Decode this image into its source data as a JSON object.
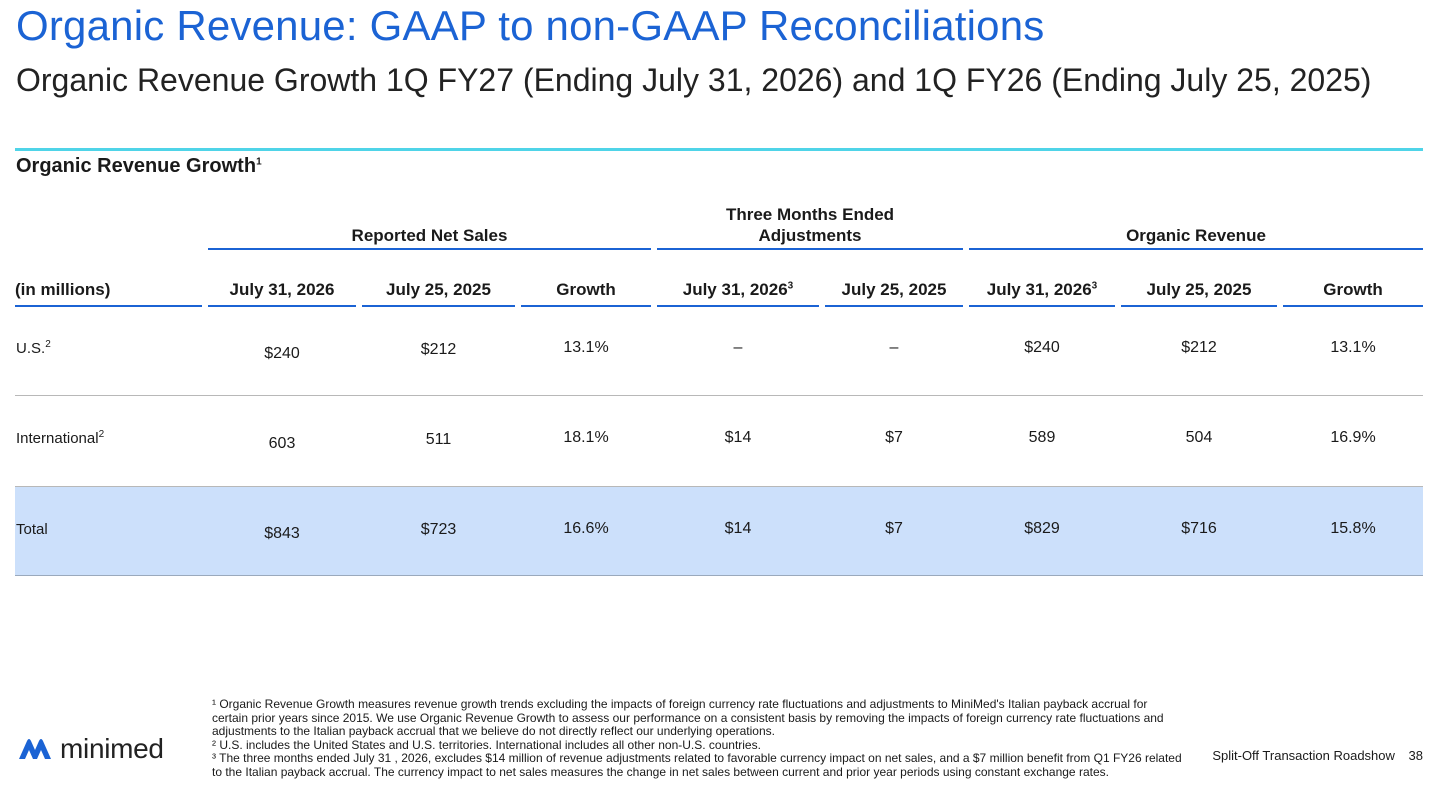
{
  "header": {
    "title": "Organic Revenue: GAAP to non-GAAP Reconciliations",
    "subtitle": "Organic Revenue Growth 1Q FY27 (Ending July 31, 2026) and 1Q FY26 (Ending July 25, 2025)"
  },
  "section": {
    "title": "Organic Revenue Growth",
    "title_sup": "1"
  },
  "groups": {
    "reported": "Reported Net Sales",
    "adjustments_line1": "Three Months Ended",
    "adjustments_line2": "Adjustments",
    "organic": "Organic Revenue"
  },
  "columns": {
    "units": "(in millions)",
    "rep_2026": "July 31, 2026",
    "rep_2025": "July 25, 2025",
    "rep_growth": "Growth",
    "adj_2026": "July 31, 2026",
    "adj_2026_sup": "3",
    "adj_2025": "July 25, 2025",
    "org_2026": "July 31, 2026",
    "org_2026_sup": "3",
    "org_2025": "July 25, 2025",
    "org_growth": "Growth"
  },
  "rows": [
    {
      "label": "U.S.",
      "sup": "2",
      "values": [
        "$240",
        "$212",
        "13.1%",
        "–",
        "–",
        "$240",
        "$212",
        "13.1%"
      ]
    },
    {
      "label": "International",
      "sup": "2",
      "values": [
        "603",
        "511",
        "18.1%",
        "$14",
        "$7",
        "589",
        "504",
        "16.9%"
      ]
    },
    {
      "label": "Total",
      "sup": "",
      "values": [
        "$843",
        "$723",
        "16.6%",
        "$14",
        "$7",
        "$829",
        "$716",
        "15.8%"
      ]
    }
  ],
  "footnotes": {
    "note1": "¹ Organic Revenue Growth measures revenue growth trends excluding the impacts of foreign currency rate fluctuations and adjustments to MiniMed's Italian payback accrual for certain prior years since 2015. We use Organic Revenue Growth to assess our performance on a consistent basis by removing the impacts of foreign currency rate fluctuations and adjustments to the Italian payback accrual that we believe do not directly reflect our underlying operations.",
    "note2": "² U.S. includes the United States and U.S. territories. International includes all other non-U.S. countries.",
    "note3": "³ The three months ended July 31 , 2026, excludes $14 million of revenue adjustments related to favorable currency impact on net sales, and a $7 million benefit from Q1 FY26 related to the Italian payback accrual. The currency impact to net sales measures the change in net sales between current and prior year periods using constant exchange rates."
  },
  "logo": {
    "text": "minimed",
    "icon": "minimed-logo-icon",
    "color": "#1b63d4"
  },
  "footer": {
    "label": "Split-Off Transaction Roadshow",
    "page": "38"
  },
  "colors": {
    "accent": "#1b63d4",
    "rule": "#4fd4e8",
    "total_band": "#cce0fb"
  }
}
